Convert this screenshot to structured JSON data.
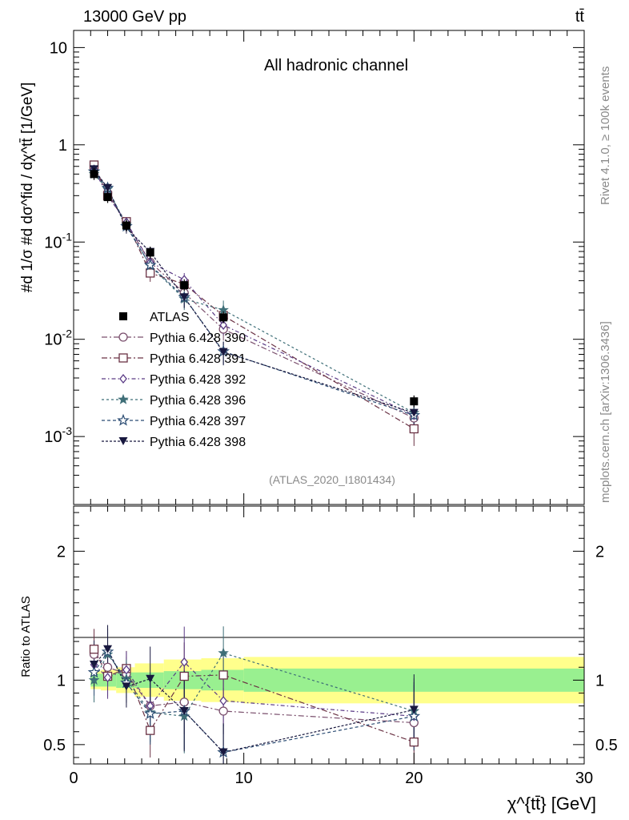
{
  "header": {
    "left": "13000 GeV pp",
    "right": "tt̄"
  },
  "side_text": {
    "rivet": "Rivet 4.1.0, ≥ 100k events",
    "source": "mcplots.cern.ch [arXiv:1306.3436]"
  },
  "chart_data": {
    "type": "scatter",
    "title": "All hadronic channel",
    "analysis_id": "(ATLAS_2020_I1801434)",
    "xlabel": "χ^{tt̄} [GeV]",
    "ylabel": "#d1/σ#dσ^{fid}/dχ^{tt̄} [1/GeV]",
    "ylabel_text": "#d 1/σ #d dσ^fid / dχ^tt̄ [1/GeV]",
    "xlim": [
      0,
      30
    ],
    "ylim": [
      0.0002,
      15
    ],
    "yscale": "log",
    "x_ticks": [
      "0",
      "10",
      "20",
      "30"
    ],
    "y_ticks": [
      "10^-3",
      "10^-2",
      "10^-1",
      "1",
      "10"
    ],
    "x": [
      1.2,
      2.0,
      3.1,
      4.5,
      6.5,
      8.8,
      20.0
    ],
    "x_err": [
      0,
      0,
      0,
      0,
      0,
      0,
      0
    ],
    "legend": [
      "ATLAS",
      "Pythia 6.428 390",
      "Pythia 6.428 391",
      "Pythia 6.428 392",
      "Pythia 6.428 396",
      "Pythia 6.428 397",
      "Pythia 6.428 398"
    ],
    "data": {
      "name": "ATLAS",
      "values": [
        0.5,
        0.29,
        0.148,
        0.078,
        0.036,
        0.0168,
        0.0023
      ],
      "stat_band_rel": [
        0.05,
        0.05,
        0.06,
        0.06,
        0.07,
        0.08,
        0.09
      ],
      "total_band_rel": [
        0.07,
        0.08,
        0.1,
        0.13,
        0.16,
        0.17,
        0.18
      ],
      "band_edges": [
        1.0,
        1.6,
        2.5,
        3.6,
        5.3,
        7.5,
        10.0,
        30.0
      ]
    },
    "series": [
      {
        "name": "Pythia 6.428 390",
        "color": "#7a4f6d",
        "marker": "circle-open",
        "dash": "7,3,2,3",
        "values": [
          0.6,
          0.32,
          0.155,
          0.062,
          0.03,
          0.0127,
          0.00155
        ],
        "errors": [
          0.06,
          0.035,
          0.018,
          0.009,
          0.006,
          0.003,
          0.0004
        ]
      },
      {
        "name": "Pythia 6.428 391",
        "color": "#6b3345",
        "marker": "square-open",
        "dash": "7,3,2,3",
        "values": [
          0.62,
          0.3,
          0.162,
          0.048,
          0.037,
          0.0175,
          0.0012
        ],
        "errors": [
          0.06,
          0.035,
          0.018,
          0.009,
          0.007,
          0.004,
          0.0004
        ]
      },
      {
        "name": "Pythia 6.428 392",
        "color": "#5a3a85",
        "marker": "diamond-open",
        "dash": "5,3,1.5,3",
        "values": [
          0.56,
          0.3,
          0.16,
          0.062,
          0.041,
          0.014,
          0.00165
        ],
        "errors": [
          0.05,
          0.035,
          0.018,
          0.009,
          0.007,
          0.003,
          0.0004
        ]
      },
      {
        "name": "Pythia 6.428 396",
        "color": "#3f6f78",
        "marker": "star-filled",
        "dash": "3,3",
        "values": [
          0.5,
          0.35,
          0.15,
          0.057,
          0.026,
          0.02,
          0.00175
        ],
        "errors": [
          0.05,
          0.04,
          0.018,
          0.009,
          0.006,
          0.005,
          0.0004
        ]
      },
      {
        "name": "Pythia 6.428 397",
        "color": "#2b4c73",
        "marker": "star-open",
        "dash": "4,3",
        "values": [
          0.53,
          0.36,
          0.145,
          0.058,
          0.027,
          0.0075,
          0.00165
        ],
        "errors": [
          0.05,
          0.04,
          0.018,
          0.009,
          0.006,
          0.002,
          0.0004
        ]
      },
      {
        "name": "Pythia 6.428 398",
        "color": "#18183f",
        "marker": "triangle-down-filled",
        "dash": "3,2",
        "values": [
          0.56,
          0.36,
          0.14,
          0.079,
          0.027,
          0.0074,
          0.00175
        ],
        "errors": [
          0.05,
          0.04,
          0.018,
          0.01,
          0.006,
          0.002,
          0.0004
        ]
      }
    ],
    "ratio": {
      "ylabel": "Ratio to ATLAS",
      "ylim": [
        0.35,
        2.35
      ],
      "y_ticks": [
        "0.5",
        "1",
        "2"
      ],
      "values": [
        [
          1.2,
          1.1,
          1.05,
          0.8,
          0.83,
          0.76,
          0.67
        ],
        [
          1.24,
          1.03,
          1.09,
          0.61,
          1.03,
          1.04,
          0.52
        ],
        [
          1.12,
          1.02,
          1.08,
          0.8,
          1.14,
          0.84,
          0.72
        ],
        [
          1.0,
          1.2,
          1.01,
          0.75,
          0.72,
          1.21,
          0.76
        ],
        [
          1.06,
          1.22,
          0.98,
          0.74,
          0.76,
          0.44,
          0.72
        ],
        [
          1.12,
          1.24,
          0.95,
          1.01,
          0.76,
          0.44,
          0.77
        ]
      ],
      "errors_rel": [
        0.15,
        0.15,
        0.13,
        0.2,
        0.25,
        0.18,
        0.22
      ]
    }
  }
}
